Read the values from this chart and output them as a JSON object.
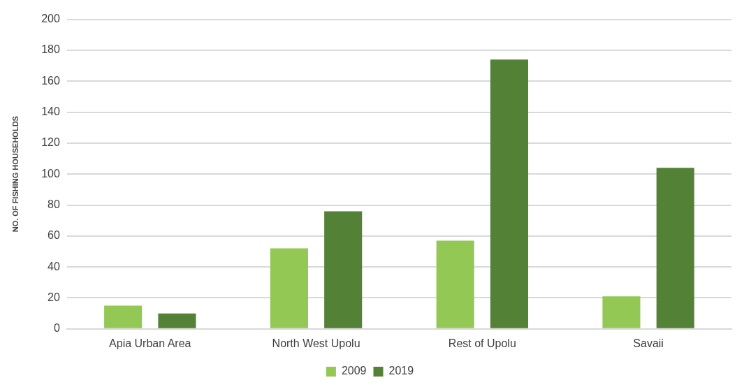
{
  "chart_data": {
    "type": "bar",
    "ylabel": "NO. OF FISHING HOUSEHOLDS",
    "categories": [
      "Apia Urban Area",
      "North West Upolu",
      "Rest of Upolu",
      "Savaii"
    ],
    "series": [
      {
        "name": "2009",
        "color": "#92c853",
        "values": [
          15,
          52,
          57,
          21
        ]
      },
      {
        "name": "2019",
        "color": "#538135",
        "values": [
          10,
          76,
          174,
          104
        ]
      }
    ],
    "ylim": [
      0,
      200
    ],
    "yticks": [
      0,
      20,
      40,
      60,
      80,
      100,
      120,
      140,
      160,
      180,
      200
    ],
    "grid": "y",
    "legend": "bottom"
  }
}
